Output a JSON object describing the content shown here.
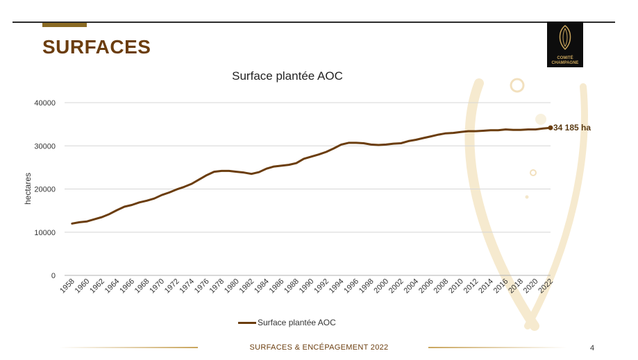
{
  "slide": {
    "title": "SURFACES",
    "logo_line1": "COMITÉ",
    "logo_line2": "CHAMPAGNE",
    "footer": "SURFACES & ENCÉPAGEMENT 2022",
    "page_number": "4"
  },
  "colors": {
    "line": "#6b3d0e",
    "title": "#6b3d0e",
    "accent": "#8a6a23",
    "gold": "#c9a55c"
  },
  "chart_data": {
    "type": "line",
    "title": "Surface plantée AOC",
    "ylabel": "hectares",
    "xlabel": "",
    "ylim": [
      0,
      40000
    ],
    "yticks": [
      0,
      10000,
      20000,
      30000,
      40000
    ],
    "x_tick_labels": [
      "1958",
      "1960",
      "1962",
      "1964",
      "1966",
      "1968",
      "1970",
      "1972",
      "1974",
      "1976",
      "1978",
      "1980",
      "1982",
      "1984",
      "1986",
      "1988",
      "1990",
      "1992",
      "1994",
      "1996",
      "1998",
      "2000",
      "2002",
      "2004",
      "2006",
      "2008",
      "2010",
      "2012",
      "2014",
      "2016",
      "2018",
      "2020",
      "2022"
    ],
    "grid": true,
    "legend": "bottom",
    "series": [
      {
        "name": "Surface plantée AOC",
        "x": [
          1958,
          1959,
          1960,
          1961,
          1962,
          1963,
          1964,
          1965,
          1966,
          1967,
          1968,
          1969,
          1970,
          1971,
          1972,
          1973,
          1974,
          1975,
          1976,
          1977,
          1978,
          1979,
          1980,
          1981,
          1982,
          1983,
          1984,
          1985,
          1986,
          1987,
          1988,
          1989,
          1990,
          1991,
          1992,
          1993,
          1994,
          1995,
          1996,
          1997,
          1998,
          1999,
          2000,
          2001,
          2002,
          2003,
          2004,
          2005,
          2006,
          2007,
          2008,
          2009,
          2010,
          2011,
          2012,
          2013,
          2014,
          2015,
          2016,
          2017,
          2018,
          2019,
          2020,
          2021,
          2022
        ],
        "values": [
          12000,
          12300,
          12500,
          13000,
          13500,
          14200,
          15100,
          15900,
          16300,
          16900,
          17300,
          17800,
          18600,
          19200,
          19900,
          20500,
          21200,
          22200,
          23200,
          24000,
          24200,
          24200,
          24000,
          23800,
          23500,
          23900,
          24700,
          25200,
          25400,
          25600,
          26000,
          27000,
          27500,
          28000,
          28600,
          29400,
          30300,
          30700,
          30700,
          30600,
          30300,
          30200,
          30300,
          30500,
          30600,
          31100,
          31400,
          31800,
          32200,
          32600,
          32900,
          33000,
          33200,
          33400,
          33400,
          33500,
          33600,
          33600,
          33800,
          33700,
          33700,
          33800,
          33800,
          34000,
          34185
        ]
      }
    ],
    "annotation": "34 185 ha"
  }
}
